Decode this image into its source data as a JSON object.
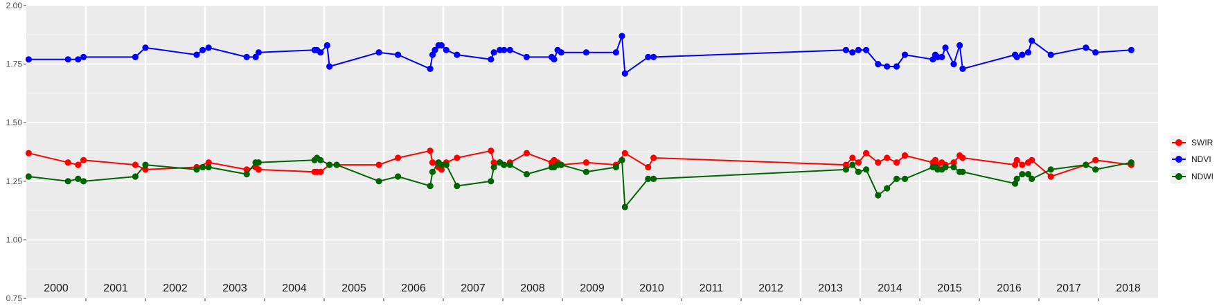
{
  "chart_data": {
    "type": "line",
    "ylim": [
      0.75,
      2.0
    ],
    "xlim": [
      2000.0,
      2019.0
    ],
    "y_ticks": [
      {
        "value": 0.75,
        "label": "0.75"
      },
      {
        "value": 1.0,
        "label": "1.00"
      },
      {
        "value": 1.25,
        "label": "1.25"
      },
      {
        "value": 1.5,
        "label": "1.50"
      },
      {
        "value": 1.75,
        "label": "1.75"
      },
      {
        "value": 2.0,
        "label": "2.00"
      }
    ],
    "year_labels": [
      "2000",
      "2001",
      "2002",
      "2003",
      "2004",
      "2005",
      "2006",
      "2007",
      "2008",
      "2009",
      "2010",
      "2011",
      "2012",
      "2013",
      "2014",
      "2015",
      "2016",
      "2017",
      "2018"
    ],
    "grid": true,
    "legend_position": "right",
    "series": [
      {
        "name": "SWIR",
        "color": "#ff0000",
        "x": [
          2000.04,
          2000.7,
          2000.87,
          2000.96,
          2001.83,
          2002.0,
          2002.86,
          2003.06,
          2003.7,
          2003.85,
          2003.9,
          2004.84,
          2004.88,
          2004.94,
          2005.09,
          2005.21,
          2005.92,
          2006.24,
          2006.78,
          2006.82,
          2006.92,
          2006.97,
          2007.05,
          2007.23,
          2007.8,
          2007.85,
          2007.95,
          2008.02,
          2008.12,
          2008.4,
          2008.82,
          2008.86,
          2008.92,
          2008.98,
          2009.4,
          2009.9,
          2010.05,
          2010.44,
          2010.53,
          2013.76,
          2013.87,
          2013.97,
          2014.1,
          2014.3,
          2014.45,
          2014.61,
          2014.75,
          2015.22,
          2015.26,
          2015.3,
          2015.37,
          2015.43,
          2015.57,
          2015.67,
          2015.72,
          2016.6,
          2016.63,
          2016.72,
          2016.82,
          2016.88,
          2017.2,
          2017.79,
          2017.95,
          2018.55
        ],
        "values": [
          1.37,
          1.33,
          1.32,
          1.34,
          1.32,
          1.3,
          1.31,
          1.33,
          1.3,
          1.31,
          1.3,
          1.29,
          1.29,
          1.29,
          1.32,
          1.32,
          1.32,
          1.35,
          1.38,
          1.33,
          1.31,
          1.3,
          1.33,
          1.35,
          1.38,
          1.33,
          1.33,
          1.32,
          1.33,
          1.37,
          1.33,
          1.34,
          1.33,
          1.32,
          1.33,
          1.32,
          1.37,
          1.31,
          1.35,
          1.32,
          1.35,
          1.33,
          1.37,
          1.33,
          1.35,
          1.33,
          1.36,
          1.33,
          1.34,
          1.32,
          1.33,
          1.32,
          1.33,
          1.36,
          1.35,
          1.32,
          1.34,
          1.32,
          1.33,
          1.34,
          1.27,
          1.32,
          1.34,
          1.32
        ]
      },
      {
        "name": "NDVI",
        "color": "#0000ff",
        "x": [
          2000.04,
          2000.7,
          2000.87,
          2000.96,
          2001.83,
          2002.0,
          2002.86,
          2002.96,
          2003.06,
          2003.7,
          2003.85,
          2003.9,
          2004.84,
          2004.88,
          2004.94,
          2005.05,
          2005.09,
          2005.92,
          2006.24,
          2006.78,
          2006.82,
          2006.86,
          2006.92,
          2006.97,
          2007.05,
          2007.23,
          2007.8,
          2007.85,
          2007.95,
          2008.02,
          2008.12,
          2008.4,
          2008.82,
          2008.86,
          2008.92,
          2008.98,
          2009.4,
          2009.9,
          2010.0,
          2010.05,
          2010.44,
          2010.53,
          2013.76,
          2013.87,
          2013.97,
          2014.1,
          2014.3,
          2014.45,
          2014.61,
          2014.75,
          2015.22,
          2015.26,
          2015.3,
          2015.37,
          2015.43,
          2015.57,
          2015.67,
          2015.72,
          2016.6,
          2016.63,
          2016.72,
          2016.82,
          2016.88,
          2017.2,
          2017.79,
          2017.95,
          2018.55
        ],
        "values": [
          1.77,
          1.77,
          1.77,
          1.78,
          1.78,
          1.82,
          1.79,
          1.81,
          1.82,
          1.78,
          1.78,
          1.8,
          1.81,
          1.81,
          1.8,
          1.83,
          1.74,
          1.8,
          1.79,
          1.73,
          1.79,
          1.81,
          1.83,
          1.83,
          1.81,
          1.79,
          1.77,
          1.8,
          1.81,
          1.81,
          1.81,
          1.78,
          1.78,
          1.77,
          1.81,
          1.8,
          1.8,
          1.8,
          1.87,
          1.71,
          1.78,
          1.78,
          1.81,
          1.8,
          1.81,
          1.81,
          1.75,
          1.74,
          1.74,
          1.79,
          1.77,
          1.79,
          1.78,
          1.78,
          1.82,
          1.75,
          1.83,
          1.73,
          1.79,
          1.78,
          1.79,
          1.8,
          1.85,
          1.79,
          1.82,
          1.8,
          1.81
        ]
      },
      {
        "name": "NDWI",
        "color": "#006400",
        "x": [
          2000.04,
          2000.7,
          2000.87,
          2000.96,
          2001.83,
          2002.0,
          2002.86,
          2002.96,
          2003.06,
          2003.7,
          2003.85,
          2003.9,
          2004.84,
          2004.88,
          2004.94,
          2005.09,
          2005.21,
          2005.92,
          2006.24,
          2006.78,
          2006.82,
          2006.92,
          2006.97,
          2007.05,
          2007.23,
          2007.8,
          2007.85,
          2007.95,
          2008.02,
          2008.12,
          2008.4,
          2008.82,
          2008.86,
          2008.92,
          2008.98,
          2009.4,
          2009.9,
          2010.0,
          2010.05,
          2010.44,
          2010.53,
          2013.76,
          2013.87,
          2013.97,
          2014.1,
          2014.3,
          2014.45,
          2014.61,
          2014.75,
          2015.22,
          2015.26,
          2015.3,
          2015.37,
          2015.43,
          2015.57,
          2015.67,
          2015.72,
          2016.6,
          2016.63,
          2016.72,
          2016.82,
          2016.88,
          2017.2,
          2017.79,
          2017.95,
          2018.55
        ],
        "values": [
          1.27,
          1.25,
          1.26,
          1.25,
          1.27,
          1.32,
          1.3,
          1.31,
          1.31,
          1.28,
          1.33,
          1.33,
          1.34,
          1.35,
          1.34,
          1.32,
          1.32,
          1.25,
          1.27,
          1.23,
          1.29,
          1.33,
          1.32,
          1.32,
          1.23,
          1.25,
          1.31,
          1.33,
          1.32,
          1.32,
          1.28,
          1.31,
          1.31,
          1.32,
          1.32,
          1.29,
          1.31,
          1.34,
          1.14,
          1.26,
          1.26,
          1.3,
          1.32,
          1.29,
          1.3,
          1.19,
          1.22,
          1.26,
          1.26,
          1.31,
          1.31,
          1.3,
          1.3,
          1.31,
          1.31,
          1.29,
          1.29,
          1.24,
          1.26,
          1.28,
          1.28,
          1.26,
          1.3,
          1.32,
          1.3,
          1.33
        ]
      }
    ]
  }
}
